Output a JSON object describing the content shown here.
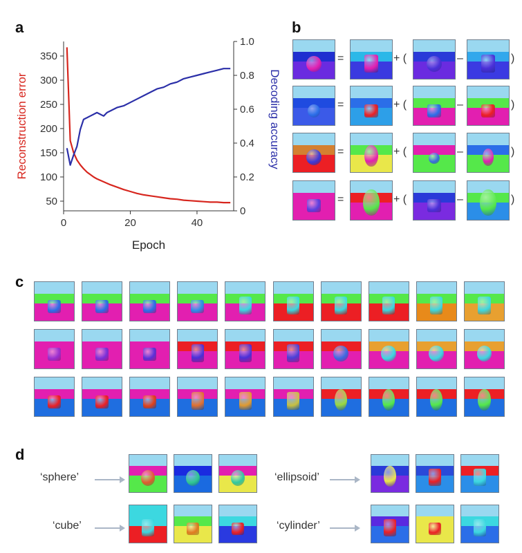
{
  "panel_letters": {
    "a": "a",
    "b": "b",
    "c": "c",
    "d": "d"
  },
  "chart_data": {
    "type": "line",
    "xlabel": "Epoch",
    "ylabel_left": "Reconstruction error",
    "ylabel_right": "Decoding accuracy",
    "xlim": [
      0,
      51
    ],
    "ylim_left": [
      30,
      380
    ],
    "ylim_right": [
      0,
      1.0
    ],
    "xticks": [
      0,
      20,
      40
    ],
    "yticks_left": [
      50,
      100,
      150,
      200,
      250,
      300,
      350
    ],
    "yticks_right": [
      0,
      0.2,
      0.4,
      0.6,
      0.8,
      1.0
    ],
    "ytick_labels_right": [
      "0",
      "0.2",
      "0.4",
      "0.6",
      "0.8",
      "1.0"
    ],
    "grid": false,
    "series": [
      {
        "axis": "left",
        "color": "#d7261e",
        "x": [
          1,
          2,
          3,
          4,
          5,
          6,
          7,
          8,
          9,
          10,
          12,
          14,
          16,
          18,
          20,
          22,
          24,
          26,
          28,
          30,
          32,
          34,
          36,
          38,
          40,
          42,
          44,
          46,
          48,
          50
        ],
        "values": [
          368,
          175,
          150,
          135,
          125,
          117,
          110,
          105,
          100,
          96,
          90,
          84,
          79,
          74,
          70,
          66,
          63,
          61,
          59,
          57,
          55,
          54,
          52,
          51,
          50,
          49,
          48,
          48,
          47,
          47
        ]
      },
      {
        "axis": "right",
        "color": "#2b2fa8",
        "x": [
          1,
          2,
          3,
          4,
          5,
          6,
          7,
          8,
          9,
          10,
          11,
          12,
          13,
          14,
          16,
          18,
          20,
          22,
          24,
          26,
          28,
          30,
          32,
          34,
          36,
          38,
          40,
          42,
          44,
          46,
          48,
          50
        ],
        "values": [
          0.37,
          0.27,
          0.33,
          0.38,
          0.48,
          0.54,
          0.55,
          0.56,
          0.57,
          0.58,
          0.57,
          0.56,
          0.58,
          0.59,
          0.61,
          0.62,
          0.64,
          0.66,
          0.68,
          0.7,
          0.72,
          0.73,
          0.75,
          0.76,
          0.78,
          0.79,
          0.8,
          0.81,
          0.82,
          0.83,
          0.84,
          0.84
        ]
      }
    ]
  },
  "panel_b": {
    "operators": {
      "equals": "=",
      "plus_open": "+ (",
      "minus": "–",
      "close": ")"
    }
  },
  "panel_d": {
    "labels": [
      "‘sphere’",
      "‘cube’",
      "‘ellipsoid’",
      "‘cylinder’"
    ]
  },
  "colors": {
    "sky": "#9ad8f0",
    "magenta": "#e21fb0",
    "green": "#55e84a",
    "red": "#ec1f24",
    "blue": "#1f4be0",
    "yellow": "#e9e74a",
    "cyan": "#3cd8e0",
    "purple": "#6a2be0"
  }
}
